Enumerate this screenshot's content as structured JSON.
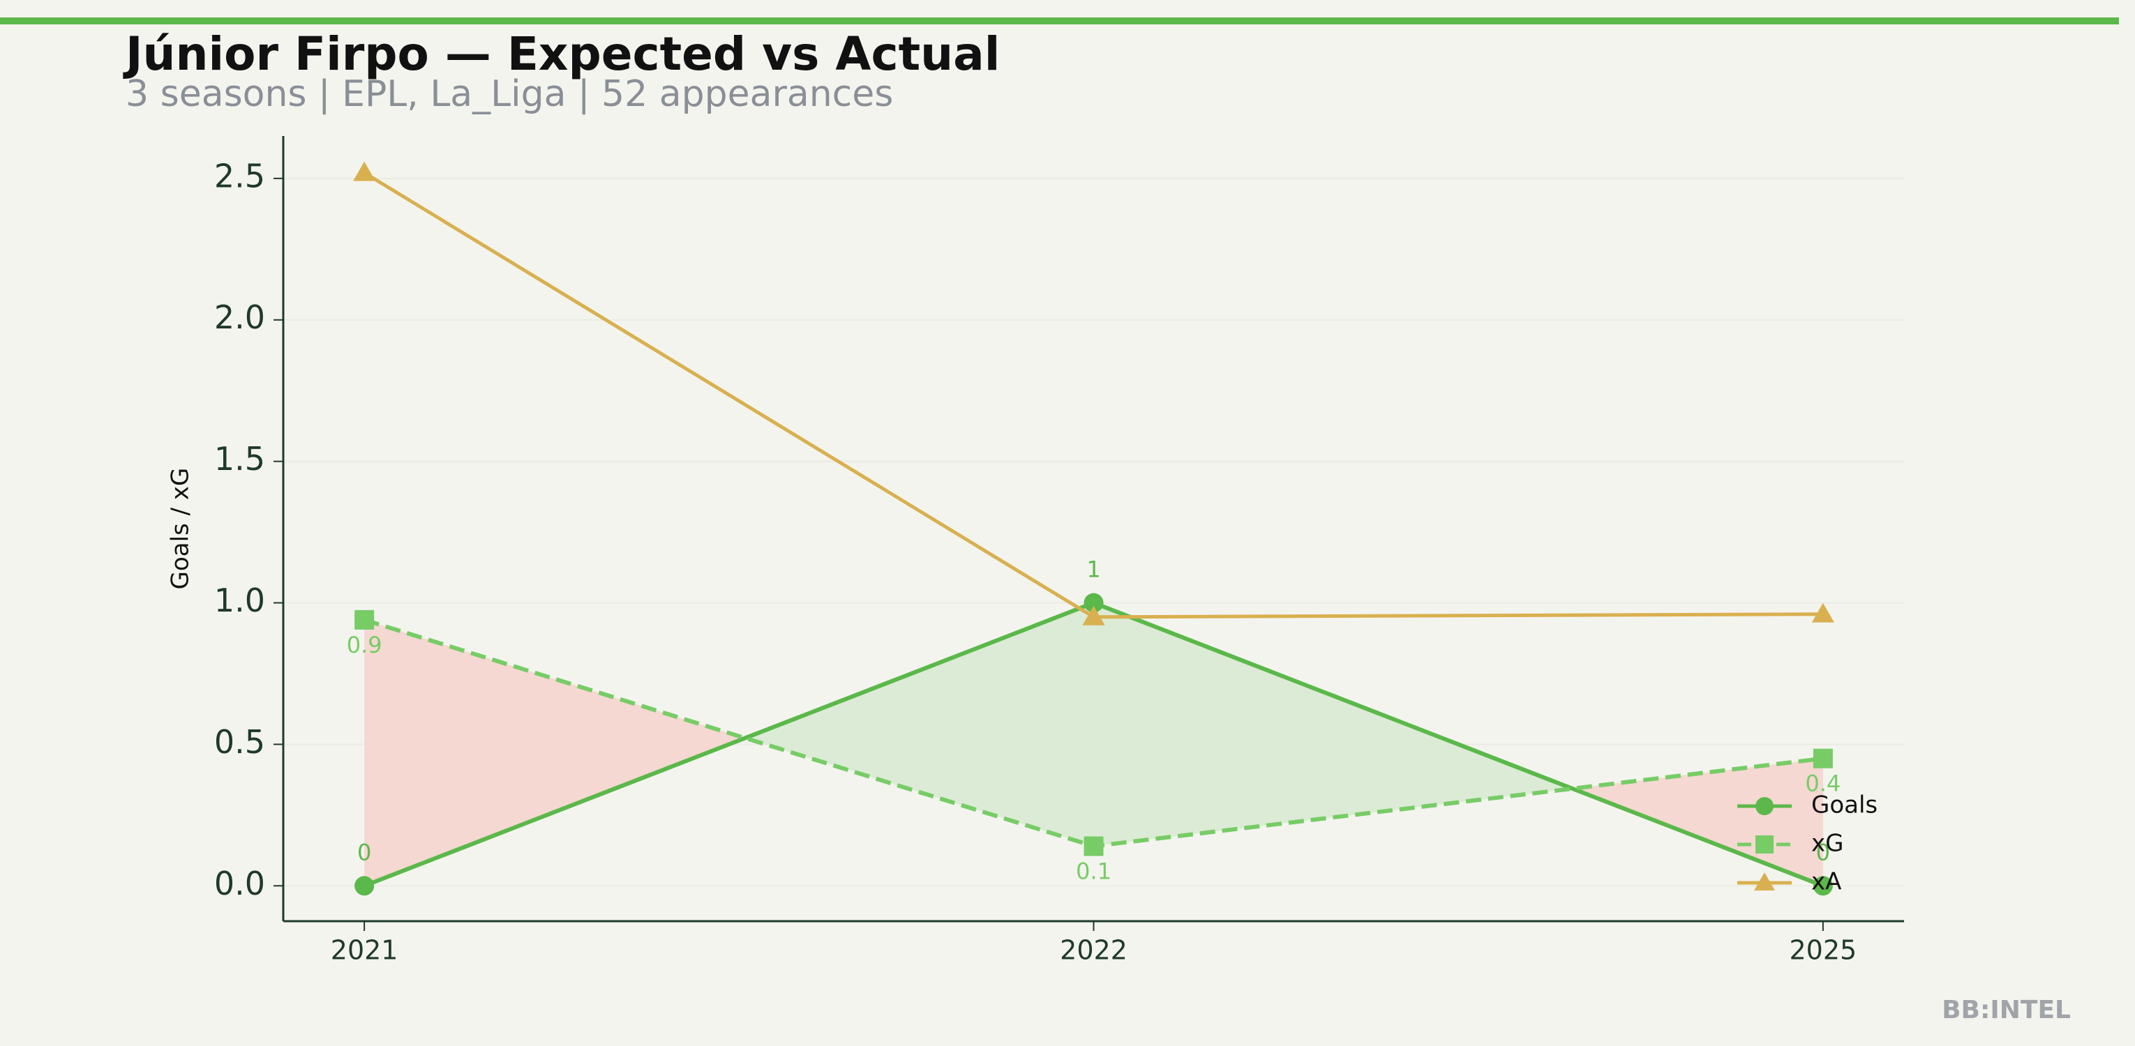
{
  "chart_data": {
    "type": "line",
    "title": "Júnior Firpo — Expected vs Actual",
    "subtitle": "3 seasons | EPL, La_Liga | 52 appearances",
    "y_label": "Goals / xG",
    "watermark": "BB:INTEL",
    "categories": [
      "2021",
      "2022",
      "2025"
    ],
    "series": [
      {
        "name": "Goals",
        "color": "#5bb84a",
        "marker": "circle",
        "linestyle": "solid",
        "values": [
          0,
          1,
          0
        ],
        "value_labels": [
          "0",
          "1",
          "0"
        ],
        "label_position": "above"
      },
      {
        "name": "xG",
        "color": "#77cc66",
        "marker": "square",
        "linestyle": "dashed",
        "values": [
          0.94,
          0.14,
          0.45
        ],
        "value_labels": [
          "0.9",
          "0.1",
          "0.4"
        ],
        "label_position": "below"
      },
      {
        "name": "xA",
        "color": "#d9b050",
        "marker": "triangle",
        "linestyle": "solid",
        "values": [
          2.52,
          0.95,
          0.96
        ]
      }
    ],
    "fill_between": {
      "series": [
        0,
        1
      ],
      "above_color": "#dcebd5",
      "below_color": "#f5d8d2"
    },
    "ylim": [
      -0.125,
      2.65
    ],
    "yticks": [
      {
        "value": 0,
        "label": "0.0"
      },
      0.5,
      {
        "value": 1,
        "label": "1.0"
      },
      1.5,
      {
        "value": 2,
        "label": "2.0"
      },
      2.5
    ],
    "grid": true,
    "legend": "lower right",
    "accent_color": "#5bb84a"
  }
}
